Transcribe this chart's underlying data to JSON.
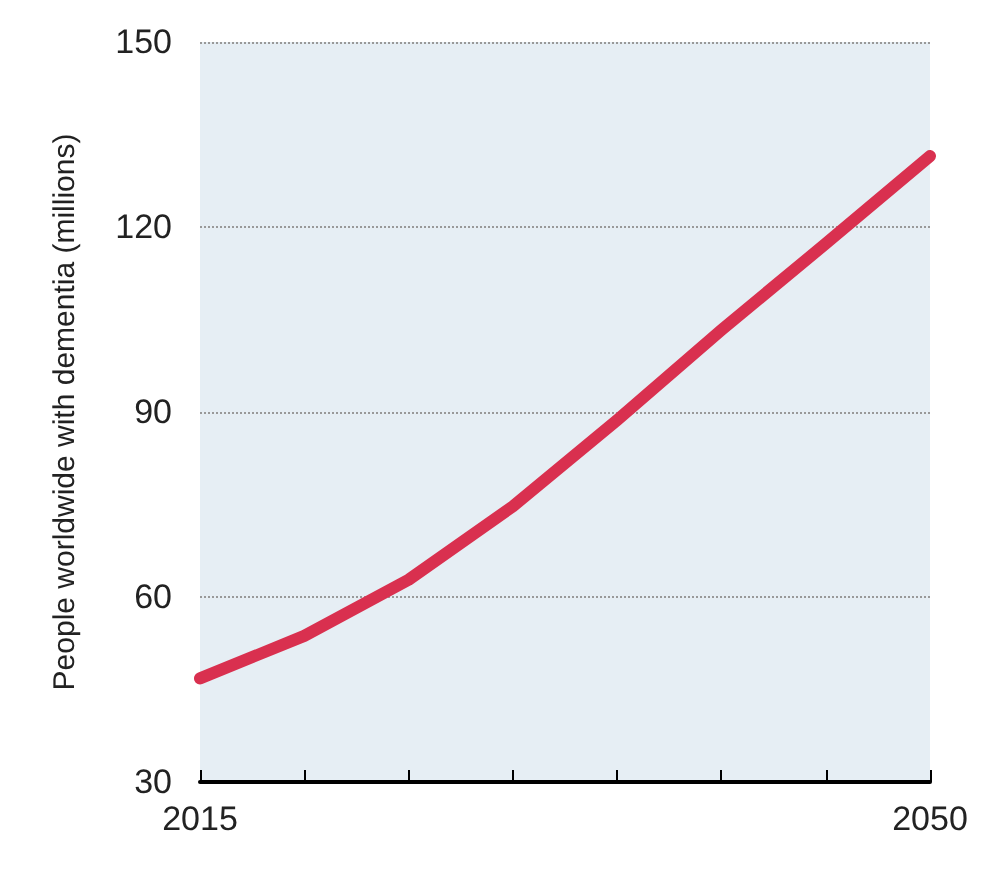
{
  "chart_data": {
    "type": "line",
    "ylabel": "People worldwide with dementia (millions)",
    "x": [
      2015,
      2020,
      2025,
      2030,
      2035,
      2040,
      2045,
      2050
    ],
    "series": [
      {
        "color": "#d9304f",
        "values": [
          46.8,
          53.7,
          62.8,
          74.7,
          88.7,
          103.3,
          117.3,
          131.5
        ]
      }
    ],
    "xlim": [
      2015,
      2050
    ],
    "xticks": [
      2015,
      {
        "value": 2020,
        "label": null
      },
      {
        "value": 2025,
        "label": null
      },
      {
        "value": 2030,
        "label": null
      },
      {
        "value": 2035,
        "label": null
      },
      {
        "value": 2040,
        "label": null
      },
      {
        "value": 2045,
        "label": null
      },
      2050
    ],
    "ylim": [
      30,
      150
    ],
    "yticks": [
      30,
      60,
      90,
      120,
      150
    ],
    "grid": "y",
    "marker": "none",
    "line_style": "solid"
  }
}
